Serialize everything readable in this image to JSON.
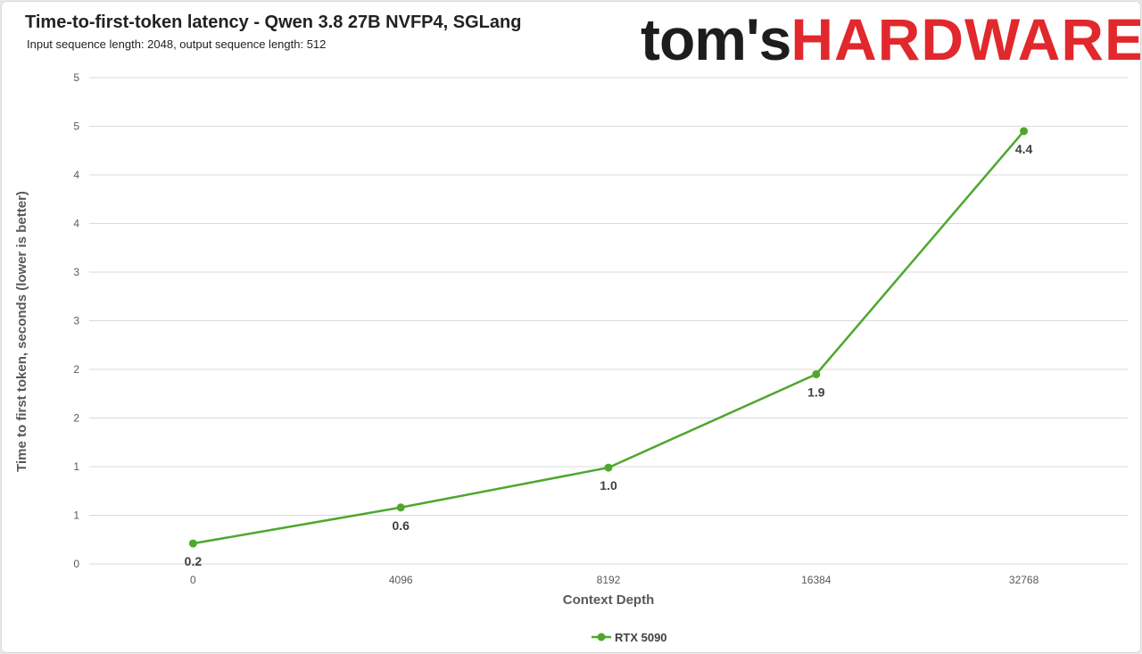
{
  "header": {
    "title": "Time-to-first-token latency - Qwen 3.8 27B NVFP4, SGLang",
    "subtitle": "Input sequence length: 2048, output sequence length: 512",
    "logo_part1": "tom's",
    "logo_part2": "HARDWARE"
  },
  "colors": {
    "series": "#4ea72e",
    "logo_red": "#e1282d",
    "logo_dark": "#1d1d1d"
  },
  "chart_data": {
    "type": "line",
    "x": [
      "0",
      "4096",
      "8192",
      "16384",
      "32768"
    ],
    "xlabel": "Context Depth",
    "ylabel": "Time to first token, seconds (lower is better)",
    "ylim": [
      0,
      5
    ],
    "y_tick_labels": [
      "0",
      "1",
      "1",
      "2",
      "2",
      "3",
      "3",
      "4",
      "4",
      "5",
      "5"
    ],
    "grid": true,
    "legend_position": "bottom",
    "series": [
      {
        "name": "RTX 5090",
        "values": [
          0.21,
          0.58,
          0.99,
          1.95,
          4.45
        ],
        "labels": [
          "0.2",
          "0.6",
          "1.0",
          "1.9",
          "4.4"
        ]
      }
    ]
  }
}
